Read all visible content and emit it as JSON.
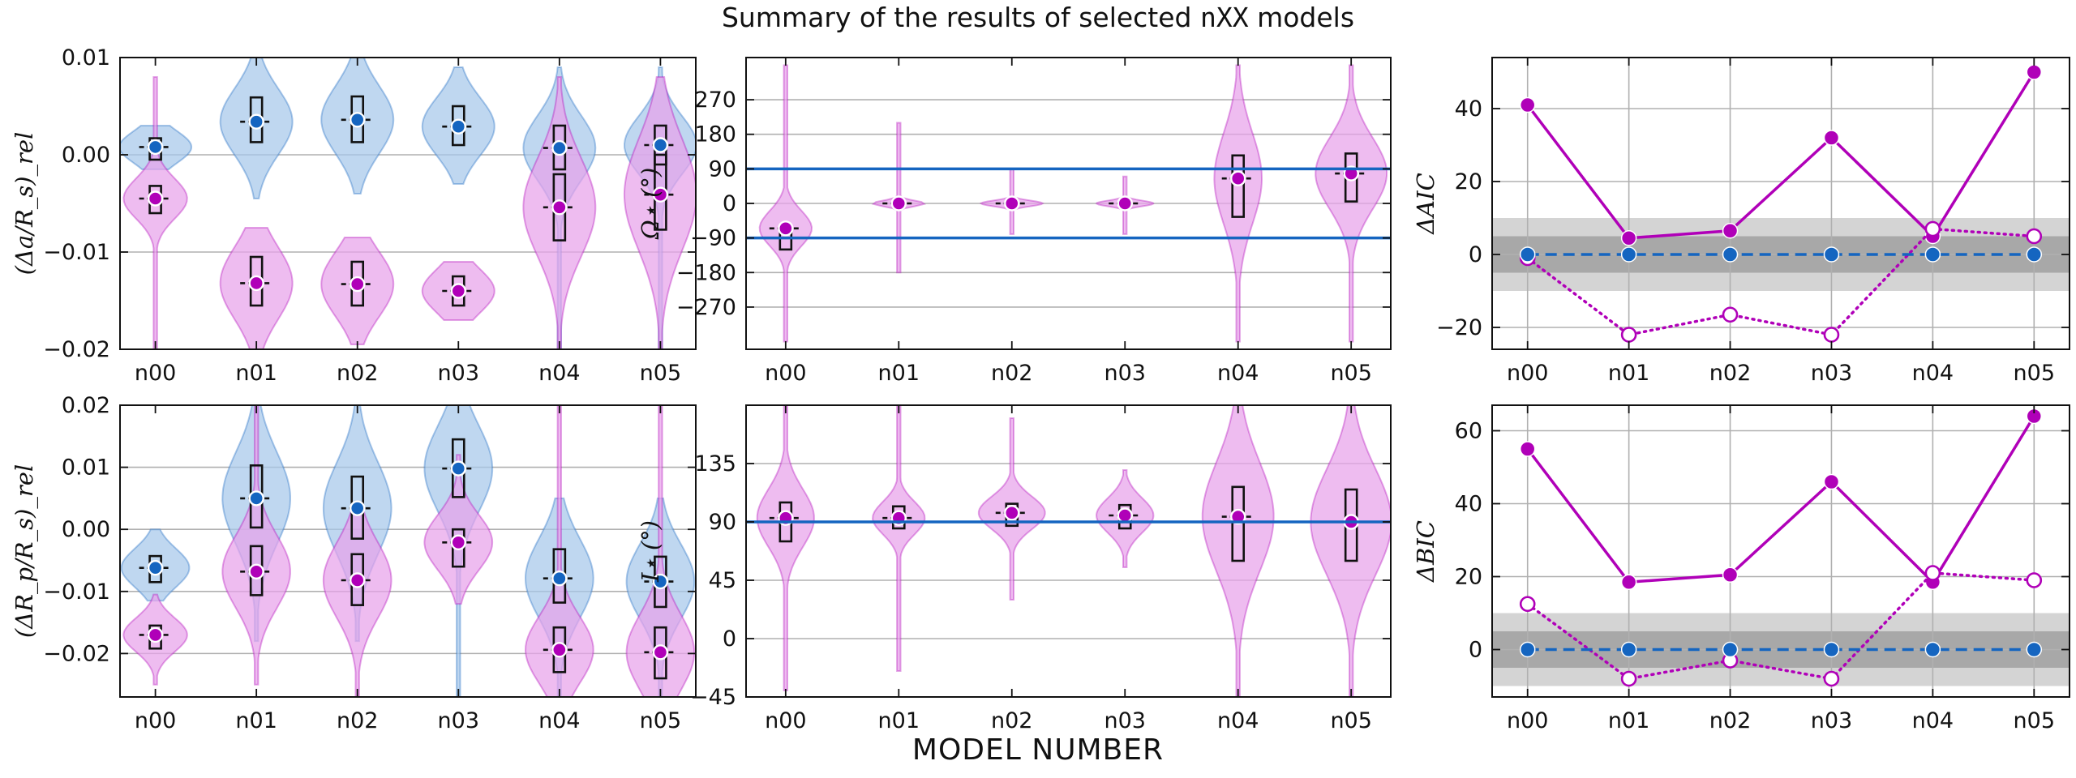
{
  "title": {
    "prefix": "Summary of the results of selected ",
    "code": "nXX",
    "suffix": " models"
  },
  "xlabel_global": "MODEL NUMBER",
  "colors": {
    "blue": "#1565c0",
    "blue_fill": "#a6c8ea",
    "magenta": "#b000b8",
    "pink_fill": "#e7a2ea",
    "dark_band": "#a8a8a8",
    "light_band": "#d4d4d4"
  },
  "chart_data": [
    {
      "id": "p1",
      "type": "violin",
      "categories": [
        "n00",
        "n01",
        "n02",
        "n03",
        "n04",
        "n05"
      ],
      "ylabel": "(Δa/R_s)_rel",
      "ylim": [
        -0.02,
        0.01
      ],
      "yticks": [
        -0.02,
        -0.01,
        0.0,
        0.01
      ],
      "ytick_labels": [
        "−0.02",
        "−0.01",
        "0.00",
        "0.01"
      ],
      "series": [
        {
          "name": "blue",
          "color": "blue",
          "medians": [
            0.0008,
            0.0034,
            0.0036,
            0.0029,
            0.0007,
            0.001
          ],
          "q": [
            [
              -0.0005,
              0.0017
            ],
            [
              0.0013,
              0.0059
            ],
            [
              0.0013,
              0.006
            ],
            [
              0.001,
              0.005
            ],
            [
              -0.0015,
              0.003
            ],
            [
              -0.001,
              0.003
            ]
          ],
          "range": [
            [
              -0.0015,
              0.003
            ],
            [
              -0.0045,
              0.011
            ],
            [
              -0.004,
              0.011
            ],
            [
              -0.003,
              0.009
            ],
            [
              -0.02,
              0.009
            ],
            [
              -0.02,
              0.009
            ]
          ],
          "width": [
            0.85,
            0.85,
            0.85,
            0.85,
            0.85,
            0.85
          ]
        },
        {
          "name": "magenta",
          "color": "magenta",
          "medians": [
            -0.0045,
            -0.0132,
            -0.0133,
            -0.014,
            -0.0054,
            -0.0041
          ],
          "q": [
            [
              -0.006,
              -0.0032
            ],
            [
              -0.0155,
              -0.0105
            ],
            [
              -0.0155,
              -0.011
            ],
            [
              -0.0155,
              -0.0125
            ],
            [
              -0.0088,
              -0.002
            ],
            [
              -0.0077,
              0.0
            ]
          ],
          "range": [
            [
              -0.02,
              0.008
            ],
            [
              -0.02,
              -0.0075
            ],
            [
              -0.0195,
              -0.0085
            ],
            [
              -0.017,
              -0.011
            ],
            [
              -0.02,
              0.008
            ],
            [
              -0.02,
              0.008
            ]
          ],
          "width": [
            0.75,
            0.85,
            0.85,
            0.85,
            0.85,
            0.85
          ]
        }
      ]
    },
    {
      "id": "p2",
      "type": "violin",
      "categories": [
        "n00",
        "n01",
        "n02",
        "n03",
        "n04",
        "n05"
      ],
      "ylabel": "Ω⋆ (°)",
      "ylim": [
        -380,
        380
      ],
      "yticks": [
        -270,
        -180,
        -90,
        0,
        90,
        180,
        270
      ],
      "ytick_labels": [
        "−270",
        "−180",
        "−90",
        "0",
        "90",
        "180",
        "270"
      ],
      "hlines": [
        90,
        -90
      ],
      "series": [
        {
          "name": "magenta",
          "color": "magenta",
          "medians": [
            -65,
            0,
            0,
            0,
            65,
            78
          ],
          "q": [
            [
              -120,
              -58
            ],
            [
              -5,
              5
            ],
            [
              -5,
              5
            ],
            [
              -5,
              5
            ],
            [
              -35,
              125
            ],
            [
              5,
              130
            ]
          ],
          "range": [
            [
              -360,
              360
            ],
            [
              -180,
              210
            ],
            [
              -80,
              90
            ],
            [
              -80,
              70
            ],
            [
              -360,
              360
            ],
            [
              -360,
              360
            ]
          ],
          "width": [
            0.55,
            0.55,
            0.65,
            0.6,
            0.5,
            0.75
          ]
        }
      ]
    },
    {
      "id": "p3",
      "type": "line",
      "categories": [
        "n00",
        "n01",
        "n02",
        "n03",
        "n04",
        "n05"
      ],
      "ylabel": "ΔAIC",
      "ylim": [
        -26,
        54
      ],
      "yticks": [
        -20,
        0,
        20,
        40
      ],
      "ytick_labels": [
        "−20",
        "0",
        "20",
        "40"
      ],
      "bands": [
        {
          "range": [
            -10,
            10
          ],
          "shade": "light"
        },
        {
          "range": [
            -5,
            5
          ],
          "shade": "dark"
        }
      ],
      "series": [
        {
          "name": "solid",
          "style": "solid",
          "marker": "filled",
          "color": "magenta",
          "values": [
            41,
            4.5,
            6.5,
            32,
            5,
            50
          ]
        },
        {
          "name": "dotted",
          "style": "dotted",
          "marker": "open",
          "color": "magenta",
          "values": [
            -1,
            -22,
            -16.5,
            -22,
            7,
            5
          ]
        },
        {
          "name": "baseline",
          "style": "dashed",
          "marker": "filled",
          "color": "blue",
          "values": [
            0,
            0,
            0,
            0,
            0,
            0
          ]
        }
      ]
    },
    {
      "id": "p4",
      "type": "violin",
      "categories": [
        "n00",
        "n01",
        "n02",
        "n03",
        "n04",
        "n05"
      ],
      "ylabel": "(ΔR_p/R_s)_rel",
      "ylim": [
        -0.027,
        0.02
      ],
      "yticks": [
        -0.02,
        -0.01,
        0.0,
        0.01,
        0.02
      ],
      "ytick_labels": [
        "−0.02",
        "−0.01",
        "0.00",
        "0.01",
        "0.02"
      ],
      "series": [
        {
          "name": "blue",
          "color": "blue",
          "medians": [
            -0.0062,
            0.005,
            0.0034,
            0.0098,
            -0.0079,
            -0.0084
          ],
          "q": [
            [
              -0.0085,
              -0.0043
            ],
            [
              0.0003,
              0.0103
            ],
            [
              -0.0015,
              0.0085
            ],
            [
              0.0052,
              0.0145
            ],
            [
              -0.0118,
              -0.0032
            ],
            [
              -0.0125,
              -0.0044
            ]
          ],
          "range": [
            [
              -0.0115,
              0.0
            ],
            [
              -0.018,
              0.025
            ],
            [
              -0.018,
              0.025
            ],
            [
              -0.027,
              0.025
            ],
            [
              -0.027,
              0.005
            ],
            [
              -0.027,
              0.005
            ]
          ],
          "width": [
            0.8,
            0.8,
            0.8,
            0.8,
            0.8,
            0.8
          ]
        },
        {
          "name": "magenta",
          "color": "magenta",
          "medians": [
            -0.017,
            -0.0068,
            -0.0082,
            -0.0021,
            -0.0194,
            -0.0198
          ],
          "q": [
            [
              -0.0192,
              -0.0155
            ],
            [
              -0.0106,
              -0.0027
            ],
            [
              -0.0122,
              -0.004
            ],
            [
              -0.006,
              0.0
            ],
            [
              -0.023,
              -0.0158
            ],
            [
              -0.024,
              -0.0158
            ]
          ],
          "range": [
            [
              -0.025,
              -0.0105
            ],
            [
              -0.025,
              0.025
            ],
            [
              -0.027,
              0.004
            ],
            [
              -0.012,
              0.012
            ],
            [
              -0.027,
              0.025
            ],
            [
              -0.027,
              0.025
            ]
          ],
          "width": [
            0.75,
            0.8,
            0.8,
            0.8,
            0.8,
            0.8
          ]
        }
      ]
    },
    {
      "id": "p5",
      "type": "violin",
      "categories": [
        "n00",
        "n01",
        "n02",
        "n03",
        "n04",
        "n05"
      ],
      "ylabel": "I⋆ (°)",
      "ylim": [
        -45,
        180
      ],
      "yticks": [
        -45,
        0,
        45,
        90,
        135
      ],
      "ytick_labels": [
        "−45",
        "0",
        "45",
        "90",
        "135"
      ],
      "hlines": [
        90
      ],
      "series": [
        {
          "name": "magenta",
          "color": "magenta",
          "medians": [
            93,
            93,
            97,
            95,
            94,
            90
          ],
          "q": [
            [
              75,
              105
            ],
            [
              85,
              102
            ],
            [
              87,
              104
            ],
            [
              85,
              103
            ],
            [
              60,
              117
            ],
            [
              60,
              115
            ]
          ],
          "range": [
            [
              -40,
              180
            ],
            [
              -25,
              180
            ],
            [
              30,
              170
            ],
            [
              55,
              130
            ],
            [
              -45,
              180
            ],
            [
              -45,
              180
            ]
          ],
          "width": [
            0.6,
            0.55,
            0.7,
            0.6,
            0.75,
            0.85
          ]
        }
      ]
    },
    {
      "id": "p6",
      "type": "line",
      "categories": [
        "n00",
        "n01",
        "n02",
        "n03",
        "n04",
        "n05"
      ],
      "ylabel": "ΔBIC",
      "ylim": [
        -13,
        67
      ],
      "yticks": [
        0,
        20,
        40,
        60
      ],
      "ytick_labels": [
        "0",
        "20",
        "40",
        "60"
      ],
      "bands": [
        {
          "range": [
            -10,
            10
          ],
          "shade": "light"
        },
        {
          "range": [
            -5,
            5
          ],
          "shade": "dark"
        }
      ],
      "series": [
        {
          "name": "solid",
          "style": "solid",
          "marker": "filled",
          "color": "magenta",
          "values": [
            55,
            18.5,
            20.5,
            46,
            18.5,
            64
          ]
        },
        {
          "name": "dotted",
          "style": "dotted",
          "marker": "open",
          "color": "magenta",
          "values": [
            12.5,
            -8,
            -3,
            -8,
            21,
            19
          ]
        },
        {
          "name": "baseline",
          "style": "dashed",
          "marker": "filled",
          "color": "blue",
          "values": [
            0,
            0,
            0,
            0,
            0,
            0
          ]
        }
      ]
    }
  ]
}
